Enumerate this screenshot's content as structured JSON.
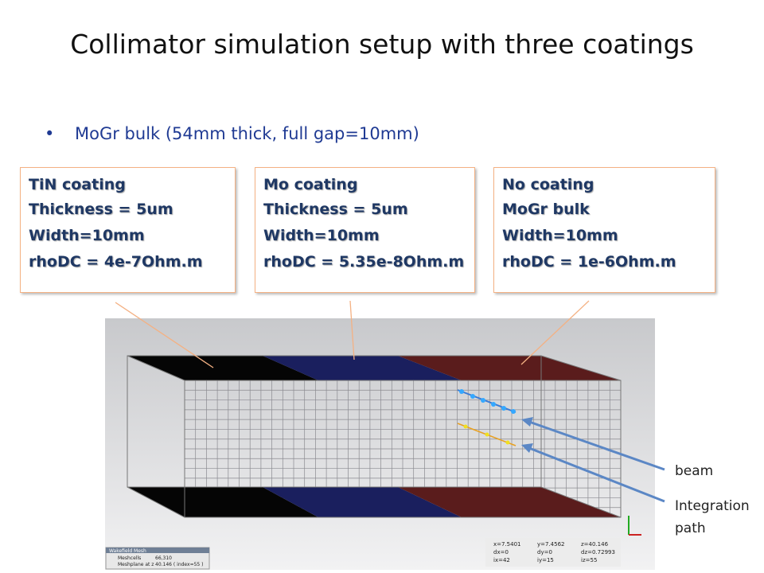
{
  "title": "Collimator simulation setup with three coatings",
  "bullet": "MoGr bulk (54mm thick, full gap=10mm)",
  "boxes": [
    {
      "lines": [
        "TiN coating",
        "Thickness = 5um",
        "Width=10mm",
        "rhoDC = 4e-7Ohm.m"
      ]
    },
    {
      "lines": [
        "Mo coating",
        "Thickness = 5um",
        "Width=10mm",
        "rhoDC = 5.35e-8Ohm.m"
      ]
    },
    {
      "lines": [
        "No coating",
        "MoGr bulk",
        "Width=10mm",
        "rhoDC = 1e-6Ohm.m"
      ]
    }
  ],
  "labels": {
    "beam": "beam",
    "integration": "Integration path"
  },
  "screenshot": {
    "panel_title": "Wakefield Mesh",
    "panel_rows": [
      [
        "Meshcells",
        "66,310"
      ],
      [
        "Meshplane at z",
        "40.146 ( index=55 )"
      ]
    ],
    "coords": [
      [
        "x=7.5401",
        "y=7.4562",
        "z=40.146"
      ],
      [
        "dx=0",
        "dy=0",
        "dz=0.72993"
      ],
      [
        "ix=42",
        "iy=15",
        "iz=55"
      ]
    ]
  }
}
